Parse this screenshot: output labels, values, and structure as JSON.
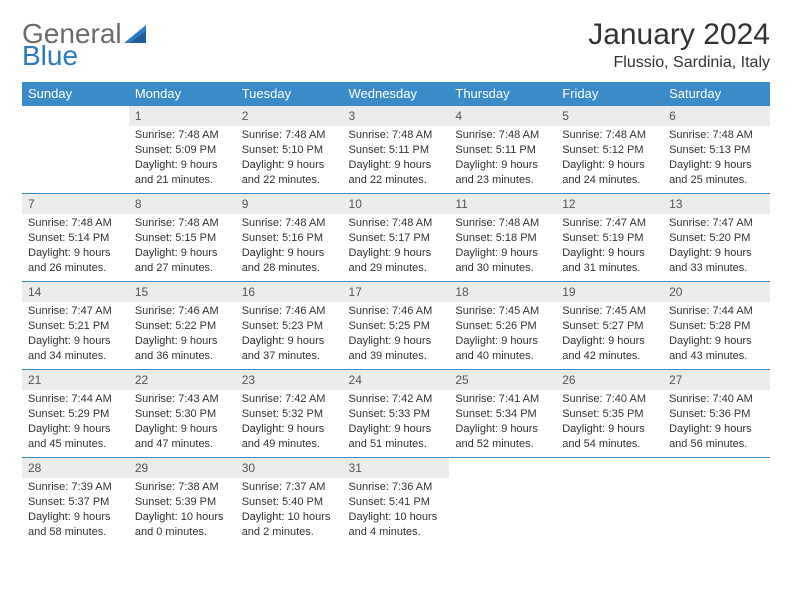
{
  "logo": {
    "text1": "General",
    "text2": "Blue",
    "color_gray": "#6b6b6b",
    "color_blue": "#2c7bbf"
  },
  "title": "January 2024",
  "location": "Flussio, Sardinia, Italy",
  "colors": {
    "header_bg": "#3b8bc8",
    "header_text": "#ffffff",
    "daynum_bg": "#ececec",
    "border": "#3b8bc8",
    "text": "#333333"
  },
  "weekdays": [
    "Sunday",
    "Monday",
    "Tuesday",
    "Wednesday",
    "Thursday",
    "Friday",
    "Saturday"
  ],
  "first_day_index": 1,
  "days": [
    {
      "n": "1",
      "sunrise": "7:48 AM",
      "sunset": "5:09 PM",
      "daylight": "9 hours and 21 minutes."
    },
    {
      "n": "2",
      "sunrise": "7:48 AM",
      "sunset": "5:10 PM",
      "daylight": "9 hours and 22 minutes."
    },
    {
      "n": "3",
      "sunrise": "7:48 AM",
      "sunset": "5:11 PM",
      "daylight": "9 hours and 22 minutes."
    },
    {
      "n": "4",
      "sunrise": "7:48 AM",
      "sunset": "5:11 PM",
      "daylight": "9 hours and 23 minutes."
    },
    {
      "n": "5",
      "sunrise": "7:48 AM",
      "sunset": "5:12 PM",
      "daylight": "9 hours and 24 minutes."
    },
    {
      "n": "6",
      "sunrise": "7:48 AM",
      "sunset": "5:13 PM",
      "daylight": "9 hours and 25 minutes."
    },
    {
      "n": "7",
      "sunrise": "7:48 AM",
      "sunset": "5:14 PM",
      "daylight": "9 hours and 26 minutes."
    },
    {
      "n": "8",
      "sunrise": "7:48 AM",
      "sunset": "5:15 PM",
      "daylight": "9 hours and 27 minutes."
    },
    {
      "n": "9",
      "sunrise": "7:48 AM",
      "sunset": "5:16 PM",
      "daylight": "9 hours and 28 minutes."
    },
    {
      "n": "10",
      "sunrise": "7:48 AM",
      "sunset": "5:17 PM",
      "daylight": "9 hours and 29 minutes."
    },
    {
      "n": "11",
      "sunrise": "7:48 AM",
      "sunset": "5:18 PM",
      "daylight": "9 hours and 30 minutes."
    },
    {
      "n": "12",
      "sunrise": "7:47 AM",
      "sunset": "5:19 PM",
      "daylight": "9 hours and 31 minutes."
    },
    {
      "n": "13",
      "sunrise": "7:47 AM",
      "sunset": "5:20 PM",
      "daylight": "9 hours and 33 minutes."
    },
    {
      "n": "14",
      "sunrise": "7:47 AM",
      "sunset": "5:21 PM",
      "daylight": "9 hours and 34 minutes."
    },
    {
      "n": "15",
      "sunrise": "7:46 AM",
      "sunset": "5:22 PM",
      "daylight": "9 hours and 36 minutes."
    },
    {
      "n": "16",
      "sunrise": "7:46 AM",
      "sunset": "5:23 PM",
      "daylight": "9 hours and 37 minutes."
    },
    {
      "n": "17",
      "sunrise": "7:46 AM",
      "sunset": "5:25 PM",
      "daylight": "9 hours and 39 minutes."
    },
    {
      "n": "18",
      "sunrise": "7:45 AM",
      "sunset": "5:26 PM",
      "daylight": "9 hours and 40 minutes."
    },
    {
      "n": "19",
      "sunrise": "7:45 AM",
      "sunset": "5:27 PM",
      "daylight": "9 hours and 42 minutes."
    },
    {
      "n": "20",
      "sunrise": "7:44 AM",
      "sunset": "5:28 PM",
      "daylight": "9 hours and 43 minutes."
    },
    {
      "n": "21",
      "sunrise": "7:44 AM",
      "sunset": "5:29 PM",
      "daylight": "9 hours and 45 minutes."
    },
    {
      "n": "22",
      "sunrise": "7:43 AM",
      "sunset": "5:30 PM",
      "daylight": "9 hours and 47 minutes."
    },
    {
      "n": "23",
      "sunrise": "7:42 AM",
      "sunset": "5:32 PM",
      "daylight": "9 hours and 49 minutes."
    },
    {
      "n": "24",
      "sunrise": "7:42 AM",
      "sunset": "5:33 PM",
      "daylight": "9 hours and 51 minutes."
    },
    {
      "n": "25",
      "sunrise": "7:41 AM",
      "sunset": "5:34 PM",
      "daylight": "9 hours and 52 minutes."
    },
    {
      "n": "26",
      "sunrise": "7:40 AM",
      "sunset": "5:35 PM",
      "daylight": "9 hours and 54 minutes."
    },
    {
      "n": "27",
      "sunrise": "7:40 AM",
      "sunset": "5:36 PM",
      "daylight": "9 hours and 56 minutes."
    },
    {
      "n": "28",
      "sunrise": "7:39 AM",
      "sunset": "5:37 PM",
      "daylight": "9 hours and 58 minutes."
    },
    {
      "n": "29",
      "sunrise": "7:38 AM",
      "sunset": "5:39 PM",
      "daylight": "10 hours and 0 minutes."
    },
    {
      "n": "30",
      "sunrise": "7:37 AM",
      "sunset": "5:40 PM",
      "daylight": "10 hours and 2 minutes."
    },
    {
      "n": "31",
      "sunrise": "7:36 AM",
      "sunset": "5:41 PM",
      "daylight": "10 hours and 4 minutes."
    }
  ]
}
